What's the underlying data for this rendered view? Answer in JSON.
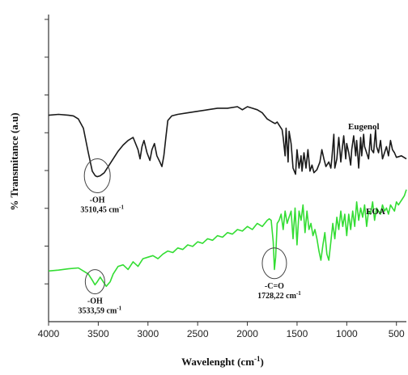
{
  "chart_data": {
    "type": "line",
    "xlabel": "Wavelenght (cm",
    "xlabel_sup": "-1",
    "xlabel_close": ")",
    "ylabel": "% Transmitance (a.u)",
    "xlim": [
      4000,
      400
    ],
    "xticks": [
      4000,
      3500,
      3000,
      2500,
      2000,
      1500,
      1000,
      500
    ],
    "ylim": [
      0,
      10
    ],
    "grid": false,
    "series": [
      {
        "name": "Eugenol",
        "color": "#1a1a1a",
        "x": [
          4000,
          3900,
          3800,
          3750,
          3700,
          3650,
          3600,
          3560,
          3530,
          3510,
          3480,
          3440,
          3400,
          3350,
          3300,
          3250,
          3200,
          3150,
          3100,
          3080,
          3060,
          3040,
          3010,
          2980,
          2960,
          2935,
          2910,
          2880,
          2860,
          2840,
          2820,
          2800,
          2760,
          2700,
          2600,
          2500,
          2400,
          2300,
          2200,
          2100,
          2050,
          2000,
          1950,
          1900,
          1850,
          1800,
          1750,
          1720,
          1700,
          1680,
          1650,
          1640,
          1620,
          1610,
          1590,
          1580,
          1560,
          1540,
          1515,
          1500,
          1480,
          1460,
          1450,
          1430,
          1410,
          1390,
          1370,
          1350,
          1330,
          1300,
          1270,
          1250,
          1230,
          1210,
          1180,
          1160,
          1150,
          1130,
          1120,
          1100,
          1080,
          1060,
          1050,
          1030,
          1010,
          1000,
          980,
          960,
          950,
          930,
          910,
          900,
          880,
          860,
          850,
          830,
          820,
          800,
          780,
          760,
          750,
          730,
          710,
          700,
          680,
          660,
          640,
          620,
          600,
          580,
          560,
          540,
          520,
          500,
          450,
          400
        ],
        "y": [
          6.72,
          6.75,
          6.72,
          6.7,
          6.6,
          6.3,
          5.5,
          4.9,
          4.75,
          4.72,
          4.75,
          4.85,
          5.05,
          5.3,
          5.55,
          5.75,
          5.9,
          6.0,
          5.6,
          5.3,
          5.7,
          5.9,
          5.5,
          5.25,
          5.6,
          5.8,
          5.4,
          5.2,
          5.05,
          5.4,
          6.0,
          6.55,
          6.7,
          6.75,
          6.8,
          6.85,
          6.9,
          6.95,
          6.95,
          7.0,
          6.9,
          7.0,
          6.95,
          6.9,
          6.8,
          6.6,
          6.5,
          6.45,
          6.5,
          6.4,
          6.25,
          6.0,
          5.4,
          6.3,
          5.2,
          6.2,
          5.8,
          5.0,
          4.8,
          5.6,
          5.0,
          5.4,
          4.9,
          5.5,
          5.0,
          5.6,
          4.9,
          5.1,
          4.85,
          4.95,
          5.2,
          5.6,
          5.3,
          5.05,
          5.2,
          5.0,
          5.3,
          6.1,
          5.0,
          5.3,
          6.0,
          5.2,
          5.5,
          6.05,
          5.3,
          5.8,
          5.5,
          5.1,
          5.6,
          6.05,
          5.4,
          5.9,
          5.0,
          6.0,
          5.4,
          6.1,
          5.7,
          5.5,
          5.3,
          6.1,
          5.6,
          5.5,
          6.25,
          5.7,
          5.5,
          5.9,
          5.3,
          5.5,
          5.7,
          5.4,
          5.9,
          5.6,
          5.5,
          5.35,
          5.4,
          5.3
        ]
      },
      {
        "name": "EOA",
        "color": "#33dd33",
        "x": [
          4000,
          3900,
          3800,
          3700,
          3650,
          3600,
          3560,
          3533,
          3510,
          3480,
          3450,
          3420,
          3380,
          3350,
          3300,
          3250,
          3200,
          3150,
          3100,
          3050,
          3000,
          2950,
          2900,
          2850,
          2800,
          2750,
          2700,
          2650,
          2600,
          2550,
          2500,
          2450,
          2400,
          2350,
          2300,
          2250,
          2200,
          2150,
          2100,
          2050,
          2000,
          1950,
          1900,
          1850,
          1800,
          1780,
          1760,
          1740,
          1728,
          1715,
          1700,
          1680,
          1660,
          1640,
          1620,
          1600,
          1580,
          1560,
          1540,
          1520,
          1500,
          1480,
          1460,
          1440,
          1420,
          1400,
          1380,
          1360,
          1340,
          1320,
          1300,
          1280,
          1260,
          1240,
          1220,
          1200,
          1180,
          1160,
          1140,
          1120,
          1100,
          1080,
          1060,
          1040,
          1020,
          1000,
          980,
          960,
          940,
          920,
          900,
          880,
          860,
          840,
          820,
          800,
          780,
          760,
          740,
          720,
          700,
          680,
          660,
          640,
          620,
          600,
          580,
          560,
          540,
          520,
          500,
          480,
          460,
          440,
          420,
          400
        ],
        "y": [
          1.65,
          1.68,
          1.72,
          1.75,
          1.65,
          1.55,
          1.35,
          1.2,
          1.3,
          1.45,
          1.3,
          1.15,
          1.3,
          1.55,
          1.8,
          1.85,
          1.7,
          1.95,
          1.8,
          2.05,
          2.1,
          2.15,
          2.05,
          2.2,
          2.3,
          2.25,
          2.4,
          2.35,
          2.5,
          2.45,
          2.6,
          2.55,
          2.7,
          2.65,
          2.8,
          2.75,
          2.9,
          2.85,
          3.0,
          2.95,
          3.1,
          3.0,
          3.2,
          3.1,
          3.3,
          3.35,
          3.3,
          2.6,
          1.7,
          2.1,
          3.2,
          3.3,
          3.5,
          3.0,
          3.6,
          3.2,
          3.4,
          3.6,
          2.7,
          3.7,
          2.5,
          3.6,
          3.3,
          3.8,
          2.9,
          3.6,
          3.0,
          3.2,
          2.8,
          3.0,
          2.7,
          2.3,
          2.0,
          2.5,
          2.9,
          2.2,
          2.0,
          2.6,
          3.2,
          2.7,
          3.4,
          3.0,
          3.6,
          3.1,
          3.5,
          2.8,
          3.5,
          3.0,
          3.6,
          3.1,
          3.9,
          3.3,
          3.7,
          3.4,
          3.8,
          3.1,
          3.6,
          3.5,
          3.9,
          3.3,
          3.7,
          3.6,
          3.5,
          3.8,
          3.6,
          3.7,
          3.5,
          3.8,
          3.7,
          3.6,
          3.9,
          3.8,
          3.9,
          4.0,
          4.1,
          4.3
        ]
      }
    ],
    "annotations": [
      {
        "series": "Eugenol",
        "x": 3510,
        "y": 4.75,
        "label1": "-OH",
        "label2": "3510,45 cm",
        "sup": "-1"
      },
      {
        "series": "EOA",
        "x": 3533,
        "y": 1.3,
        "label1": "-OH",
        "label2": "3533,59 cm",
        "sup": "-1"
      },
      {
        "series": "EOA",
        "x": 1728,
        "y": 1.9,
        "label1": "-C=O",
        "label2": "1728,22 cm",
        "sup": "-1"
      }
    ]
  }
}
